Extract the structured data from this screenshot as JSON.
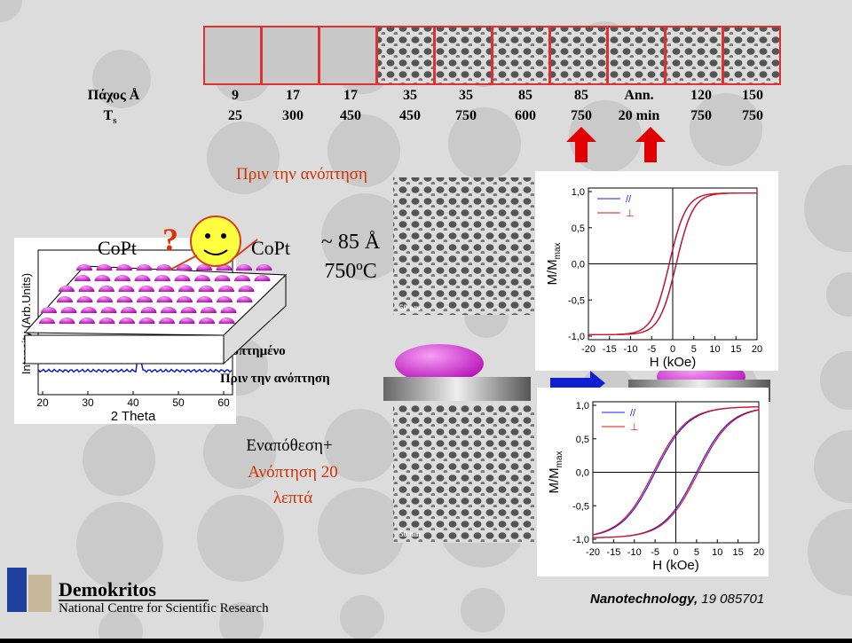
{
  "table": {
    "row_labels": [
      "Πάχος Å",
      "T"
    ],
    "row_label_sub": "s",
    "rows": [
      [
        "9",
        "17",
        "17",
        "35",
        "35",
        "85",
        "85",
        "Ann.",
        "120",
        "150"
      ],
      [
        "25",
        "300",
        "450",
        "450",
        "750",
        "600",
        "750",
        "20 min",
        "750",
        "750"
      ]
    ]
  },
  "before_anneal": "Πριν την ανόπτηση",
  "thickness": "~ 85 Å",
  "temperature": "750ºC",
  "xrd": {
    "ylabel": "Intensity (Arb.Units)",
    "xlabel": "2 Theta",
    "xticks": [
      "20",
      "30",
      "40",
      "50",
      "60"
    ],
    "left_label": "CoPt",
    "right_label": "CoPt",
    "question": "?",
    "annealed": "Ανοπτημένο",
    "before": "Πριν την ανόπτηση"
  },
  "deposition": [
    "Εναπόθεση+",
    "Ανόπτηση 20",
    "λεπτά"
  ],
  "sem_images": [
    {
      "scale": "50 nm"
    },
    {
      "scale": "50 nm"
    }
  ],
  "loops": [
    {
      "ylabel": "M/M",
      "ylabel_sub": "max",
      "xlabel": "H (kOe)",
      "legend": [
        "//",
        "⊥"
      ],
      "yticks": [
        "1,0",
        "0,5",
        "0,0",
        "-0,5",
        "-1,0"
      ],
      "xticks": [
        "-20",
        "-15",
        "-10",
        "-5",
        "0",
        "5",
        "10",
        "15",
        "20"
      ]
    },
    {
      "ylabel": "M/M",
      "ylabel_sub": "max",
      "xlabel": "H (kOe)",
      "legend": [
        "//",
        "⊥"
      ],
      "yticks": [
        "1,0",
        "0,5",
        "0,0",
        "-0,5",
        "-1,0"
      ],
      "xticks": [
        "-20",
        "-15",
        "-10",
        "-5",
        "0",
        "5",
        "10",
        "15",
        "20"
      ]
    }
  ],
  "footer": {
    "org": "Demokritos",
    "org_full": "National Centre for Scientific Research",
    "journal": "Nanotechnology,",
    "ref": " 19 085701"
  }
}
